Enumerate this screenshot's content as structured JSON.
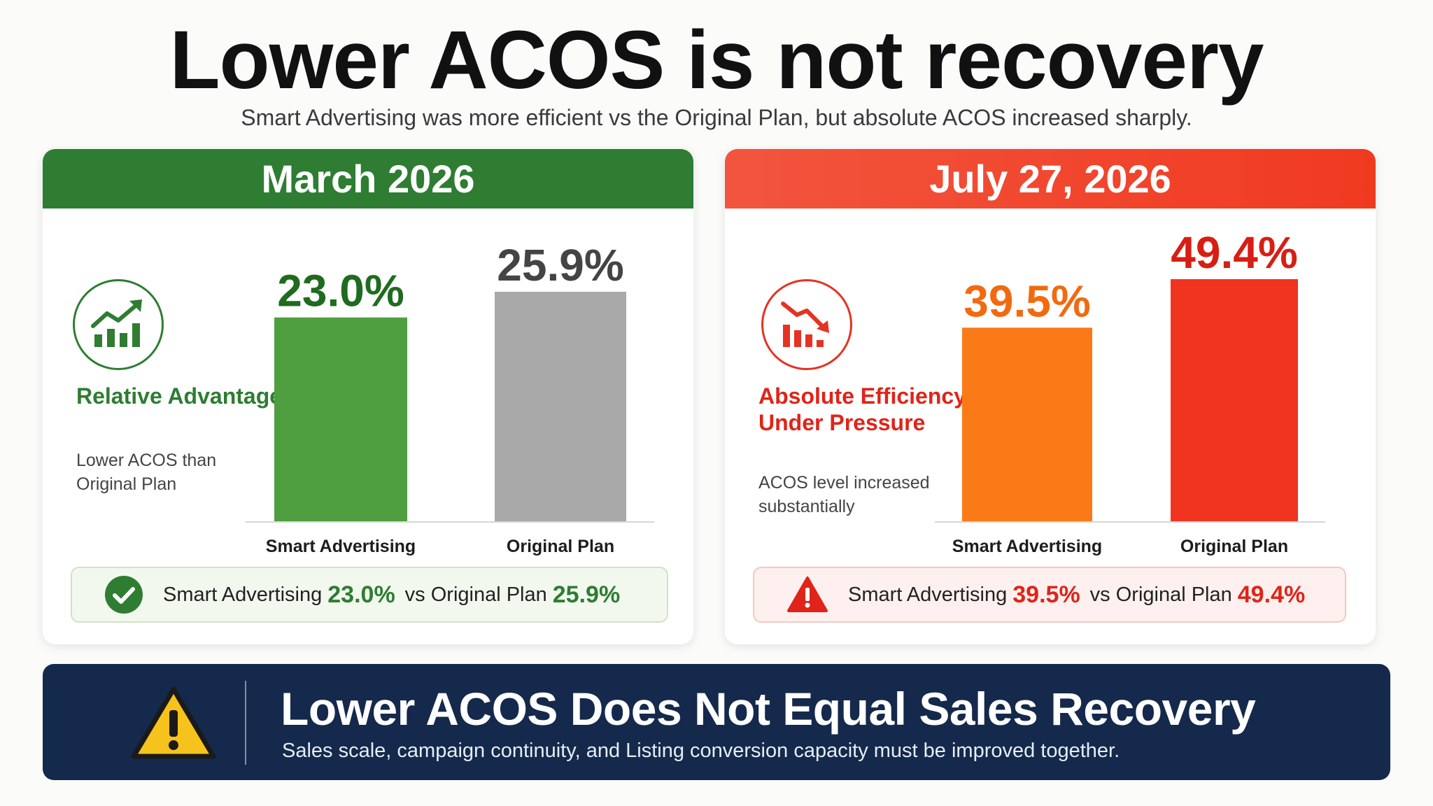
{
  "title": "Lower ACOS is not recovery",
  "subtitle": "Smart Advertising was more efficient vs the Original Plan, but absolute ACOS increased sharply.",
  "panels": [
    {
      "header": "March 2026",
      "icon": "trend-up-chart-icon",
      "heading": "Relative Advantage",
      "description": "Lower ACOS than Original Plan",
      "summary": {
        "label_a": "Smart Advertising",
        "value_a": "23.0%",
        "label_b": "vs Original Plan",
        "value_b": "25.9%",
        "icon": "check-circle-icon"
      }
    },
    {
      "header": "July 27, 2026",
      "icon": "trend-down-chart-icon",
      "heading": "Absolute Efficiency Under Pressure",
      "description": "ACOS level increased substantially",
      "summary": {
        "label_a": "Smart Advertising",
        "value_a": "39.5%",
        "label_b": "vs Original Plan",
        "value_b": "49.4%",
        "icon": "warning-triangle-icon"
      }
    }
  ],
  "banner": {
    "title": "Lower ACOS Does Not Equal Sales Recovery",
    "subtitle": "Sales scale, campaign continuity, and Listing conversion capacity must be improved together.",
    "icon": "warning-icon"
  },
  "chart_data": [
    {
      "type": "bar",
      "categories": [
        "Smart Advertising",
        "Original Plan"
      ],
      "values": [
        23.0,
        25.9
      ],
      "value_labels": [
        "23.0%",
        "25.9%"
      ],
      "title": "March 2026",
      "colors": [
        "#4f9e3f",
        "#a8a8a8"
      ],
      "label_colors": [
        "#1f6b1f",
        "#444444"
      ],
      "ylim": [
        0,
        25.9
      ]
    },
    {
      "type": "bar",
      "categories": [
        "Smart Advertising",
        "Original Plan"
      ],
      "values": [
        39.5,
        49.4
      ],
      "value_labels": [
        "39.5%",
        "49.4%"
      ],
      "title": "July 27, 2026",
      "colors": [
        "#fb7a18",
        "#f03420"
      ],
      "label_colors": [
        "#f26a10",
        "#d81e14"
      ],
      "ylim": [
        0,
        49.4
      ]
    }
  ]
}
